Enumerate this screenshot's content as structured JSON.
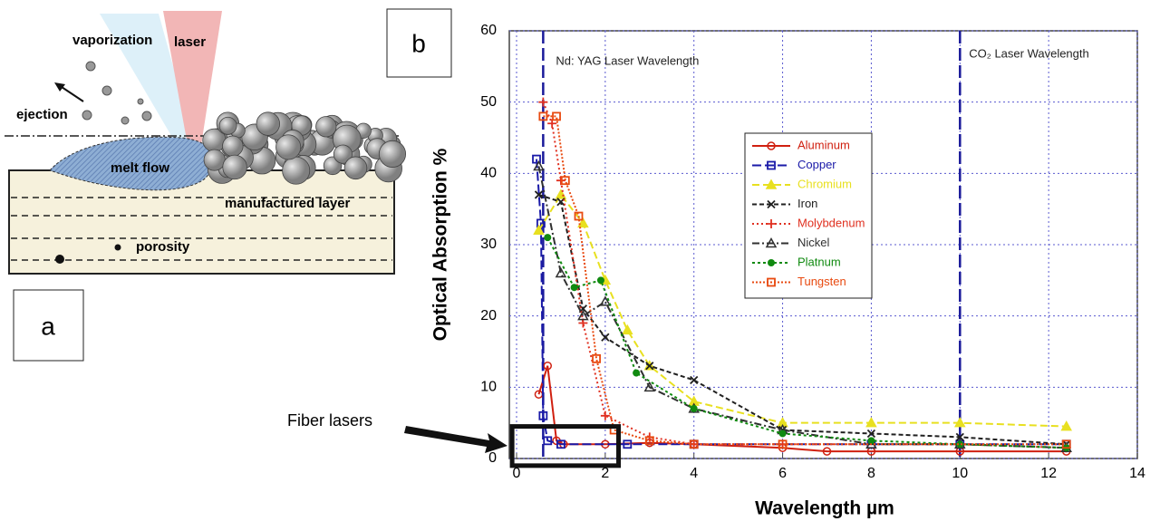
{
  "diagram": {
    "labels": {
      "vaporization": "vaporization",
      "laser": "laser",
      "ejection": "ejection",
      "melt": "melt flow",
      "layer": "manufactured layer",
      "porosity": "porosity"
    },
    "panel": "a"
  },
  "chart_data": {
    "type": "line",
    "panel": "b",
    "xlabel": "Wavelength µm",
    "ylabel": "Optical Absorption %",
    "xlim": [
      0,
      14
    ],
    "ylim": [
      0,
      60
    ],
    "xticks": [
      0,
      2,
      4,
      6,
      8,
      10,
      12,
      14
    ],
    "yticks": [
      0,
      10,
      20,
      30,
      40,
      50,
      60
    ],
    "grid": true,
    "vlines": [
      {
        "x": 0.6,
        "label": "Nd: YAG Laser Wavelength"
      },
      {
        "x": 10,
        "label": "CO₂ Laser Wavelength"
      }
    ],
    "highlight": {
      "label": "Fiber lasers",
      "xlim": [
        -0.1,
        2.3
      ],
      "ylim": [
        -1,
        4.5
      ]
    },
    "series": [
      {
        "name": "Aluminum",
        "color": "#d02010",
        "marker": "circle",
        "dash": "",
        "x": [
          0.5,
          0.7,
          0.9,
          1.06,
          2,
          3,
          4,
          6,
          7,
          8,
          10,
          12.4
        ],
        "values": [
          9,
          13,
          2.5,
          2,
          2,
          2.2,
          2,
          1.5,
          1,
          1,
          1,
          1
        ]
      },
      {
        "name": "Copper",
        "color": "#1a1aa8",
        "marker": "square",
        "dash": "10 4",
        "x": [
          0.45,
          0.55,
          0.6,
          0.7,
          1,
          2.5,
          4,
          8,
          10,
          12.4
        ],
        "values": [
          42,
          33,
          6,
          2.5,
          2,
          2,
          2,
          2,
          2,
          2
        ]
      },
      {
        "name": "Chromium",
        "color": "#e8e020",
        "marker": "triangle",
        "dash": "8 4",
        "x": [
          0.5,
          1,
          1.5,
          2,
          2.5,
          3,
          4,
          6,
          8,
          10,
          12.4
        ],
        "values": [
          32,
          37,
          33,
          25,
          18,
          13,
          8,
          5,
          5,
          5,
          4.5
        ]
      },
      {
        "name": "Iron",
        "color": "#202020",
        "marker": "cross",
        "dash": "5 3",
        "x": [
          0.5,
          1,
          1.5,
          2,
          3,
          4,
          6,
          8,
          10,
          12.4
        ],
        "values": [
          37,
          36,
          21,
          17,
          13,
          11,
          4,
          3.5,
          3,
          2
        ]
      },
      {
        "name": "Molybdenum",
        "color": "#e03020",
        "marker": "plus",
        "dash": "2 3",
        "x": [
          0.6,
          0.8,
          1,
          1.5,
          2,
          3,
          4,
          6,
          10,
          12.4
        ],
        "values": [
          50,
          47,
          39,
          19,
          6,
          3,
          2,
          2,
          2,
          1.5
        ]
      },
      {
        "name": "Nickel",
        "color": "#303030",
        "marker": "otriangle",
        "dash": "8 3 2 3",
        "x": [
          0.5,
          1,
          1.5,
          2,
          3,
          4,
          6,
          8,
          10,
          12.4
        ],
        "values": [
          41,
          26,
          20,
          22,
          10,
          7,
          4,
          2,
          2,
          1.5
        ]
      },
      {
        "name": "Platnum",
        "color": "#108a10",
        "marker": "dot",
        "dash": "3 3",
        "x": [
          0.7,
          1.3,
          1.9,
          2.7,
          4,
          6,
          8,
          10,
          12.4
        ],
        "values": [
          31,
          24,
          25,
          12,
          7,
          3.5,
          2.5,
          2,
          1.5
        ]
      },
      {
        "name": "Tungsten",
        "color": "#e84a10",
        "marker": "square",
        "dash": "2 2",
        "x": [
          0.6,
          0.9,
          1.1,
          1.4,
          1.8,
          2.2,
          3,
          4,
          6,
          12.4
        ],
        "values": [
          48,
          48,
          39,
          34,
          14,
          4,
          2.5,
          2,
          2,
          2
        ]
      }
    ]
  }
}
